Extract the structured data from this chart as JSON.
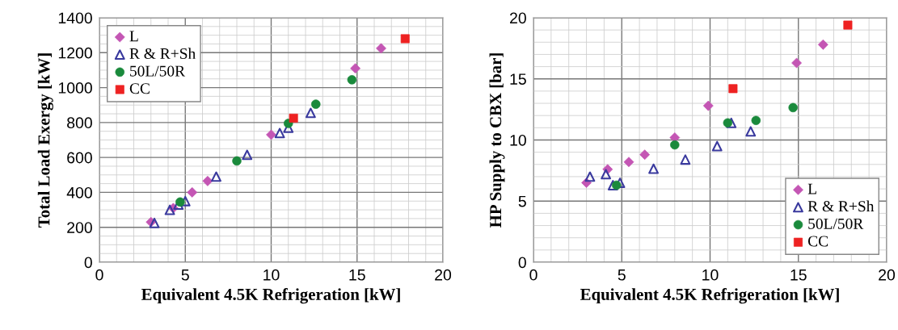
{
  "chart_data": [
    {
      "type": "scatter",
      "xlabel": "Equivalent 4.5K Refrigeration [kW]",
      "ylabel": "Total Load Exergy [kW]",
      "xlim": [
        0,
        20
      ],
      "ylim": [
        0,
        1400
      ],
      "xticks": [
        0,
        5,
        10,
        15,
        20
      ],
      "yticks": [
        0,
        200,
        400,
        600,
        800,
        1000,
        1200,
        1400
      ],
      "grid": true,
      "legend": "top left",
      "series": [
        {
          "name": "L",
          "color": "#c456b4",
          "marker": "diamond",
          "x": [
            3.0,
            4.3,
            5.4,
            6.3,
            10.0,
            14.9,
            16.4
          ],
          "values": [
            230,
            310,
            400,
            465,
            730,
            1110,
            1225
          ]
        },
        {
          "name": "R & R+Sh",
          "color": "#3a3a9e",
          "marker": "triangle",
          "x": [
            3.2,
            4.1,
            4.6,
            5.0,
            6.8,
            8.6,
            10.5,
            11.0,
            12.3
          ],
          "values": [
            225,
            300,
            330,
            350,
            490,
            615,
            740,
            770,
            855
          ]
        },
        {
          "name": "50L/50R",
          "color": "#1a8a3c",
          "marker": "circle",
          "x": [
            4.7,
            8.0,
            11.0,
            12.6,
            14.7
          ],
          "values": [
            345,
            580,
            795,
            905,
            1045
          ]
        },
        {
          "name": "CC",
          "color": "#ee2222",
          "marker": "square",
          "x": [
            11.3,
            17.8
          ],
          "values": [
            825,
            1280
          ]
        }
      ]
    },
    {
      "type": "scatter",
      "xlabel": "Equivalent 4.5K Refrigeration [kW]",
      "ylabel": "HP Supply to CBX [bar]",
      "xlim": [
        0,
        20
      ],
      "ylim": [
        0,
        20
      ],
      "xticks": [
        0,
        5,
        10,
        15,
        20
      ],
      "yticks": [
        0,
        5,
        10,
        15,
        20
      ],
      "grid": true,
      "legend": "bottom right",
      "series": [
        {
          "name": "L",
          "color": "#c456b4",
          "marker": "diamond",
          "x": [
            3.0,
            4.2,
            5.4,
            6.3,
            8.0,
            9.9,
            14.9,
            16.4
          ],
          "values": [
            6.5,
            7.6,
            8.2,
            8.8,
            10.2,
            12.8,
            16.3,
            17.8
          ]
        },
        {
          "name": "R & R+Sh",
          "color": "#3a3a9e",
          "marker": "triangle",
          "x": [
            3.2,
            4.1,
            4.5,
            4.9,
            6.8,
            8.6,
            10.4,
            11.2,
            12.3
          ],
          "values": [
            7.0,
            7.2,
            6.3,
            6.5,
            7.65,
            8.4,
            9.5,
            11.4,
            10.7
          ]
        },
        {
          "name": "50L/50R",
          "color": "#1a8a3c",
          "marker": "circle",
          "x": [
            4.7,
            8.0,
            11.0,
            12.6,
            14.7
          ],
          "values": [
            6.3,
            9.6,
            11.4,
            11.6,
            12.65
          ]
        },
        {
          "name": "CC",
          "color": "#ee2222",
          "marker": "square",
          "x": [
            11.3,
            17.8
          ],
          "values": [
            14.2,
            19.4
          ]
        }
      ]
    }
  ]
}
